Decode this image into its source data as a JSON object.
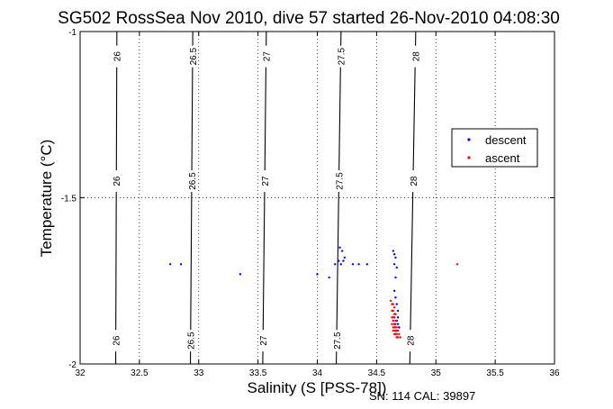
{
  "chart_data": {
    "type": "scatter",
    "title": "SG502 RossSea Nov 2010, dive 57 started 26-Nov-2010 04:08:30",
    "xlabel": "Salinity (S [PSS-78])",
    "ylabel": "Temperature (°C)",
    "xlim": [
      32,
      36
    ],
    "ylim": [
      -2,
      -1
    ],
    "x_ticks": [
      "32",
      "32.5",
      "33",
      "33.5",
      "34",
      "34.5",
      "35",
      "35.5",
      "36"
    ],
    "y_ticks": [
      "-2",
      "-1.5",
      "-1"
    ],
    "grid": true,
    "grid_style": "dotted",
    "legend_placement": "right",
    "footer": "SN: 114  CAL: 39897",
    "colors": {
      "descent": "#0000ff",
      "ascent": "#ff0000",
      "contour": "#000000"
    },
    "contours": [
      {
        "label": "26",
        "bottom_s": 32.3,
        "top_s": 32.31
      },
      {
        "label": "26.5",
        "bottom_s": 32.93,
        "top_s": 32.95
      },
      {
        "label": "27",
        "bottom_s": 33.54,
        "top_s": 33.57
      },
      {
        "label": "27.5",
        "bottom_s": 34.16,
        "top_s": 34.2
      },
      {
        "label": "28",
        "bottom_s": 34.78,
        "top_s": 34.83
      }
    ],
    "series": [
      {
        "name": "descent",
        "marker": "dot",
        "x": [
          32.76,
          32.85,
          33.35,
          34.0,
          34.1,
          34.15,
          34.18,
          34.2,
          34.22,
          34.23,
          34.21,
          34.19,
          34.3,
          34.35,
          34.42,
          34.64,
          34.65,
          34.66,
          34.65,
          34.67,
          34.66,
          34.65,
          34.66,
          34.67,
          34.68,
          34.66,
          34.65,
          34.67,
          34.68,
          34.69,
          34.67,
          34.66,
          34.65,
          34.67,
          34.68,
          34.69,
          34.66,
          34.67
        ],
        "y": [
          -1.7,
          -1.7,
          -1.73,
          -1.73,
          -1.74,
          -1.7,
          -1.69,
          -1.7,
          -1.69,
          -1.68,
          -1.66,
          -1.65,
          -1.7,
          -1.7,
          -1.7,
          -1.66,
          -1.67,
          -1.68,
          -1.7,
          -1.71,
          -1.74,
          -1.78,
          -1.8,
          -1.82,
          -1.84,
          -1.85,
          -1.86,
          -1.87,
          -1.88,
          -1.89,
          -1.9,
          -1.91,
          -1.88,
          -1.87,
          -1.86,
          -1.89,
          -1.9,
          -1.92
        ]
      },
      {
        "name": "ascent",
        "marker": "dot",
        "x": [
          35.18,
          34.62,
          34.63,
          34.64,
          34.65,
          34.63,
          34.64,
          34.65,
          34.66,
          34.64,
          34.63,
          34.65,
          34.66,
          34.64,
          34.65,
          34.63,
          34.66,
          34.64,
          34.65,
          34.66,
          34.67,
          34.64,
          34.65,
          34.66,
          34.68,
          34.67,
          34.65,
          34.69,
          34.7,
          34.68,
          34.67,
          34.66,
          34.65,
          34.64
        ],
        "y": [
          -1.7,
          -1.81,
          -1.82,
          -1.82,
          -1.83,
          -1.84,
          -1.84,
          -1.85,
          -1.85,
          -1.86,
          -1.86,
          -1.86,
          -1.87,
          -1.87,
          -1.88,
          -1.88,
          -1.88,
          -1.89,
          -1.89,
          -1.89,
          -1.89,
          -1.9,
          -1.9,
          -1.9,
          -1.9,
          -1.91,
          -1.91,
          -1.91,
          -1.92,
          -1.92,
          -1.92,
          -1.91,
          -1.89,
          -1.87
        ]
      }
    ]
  }
}
